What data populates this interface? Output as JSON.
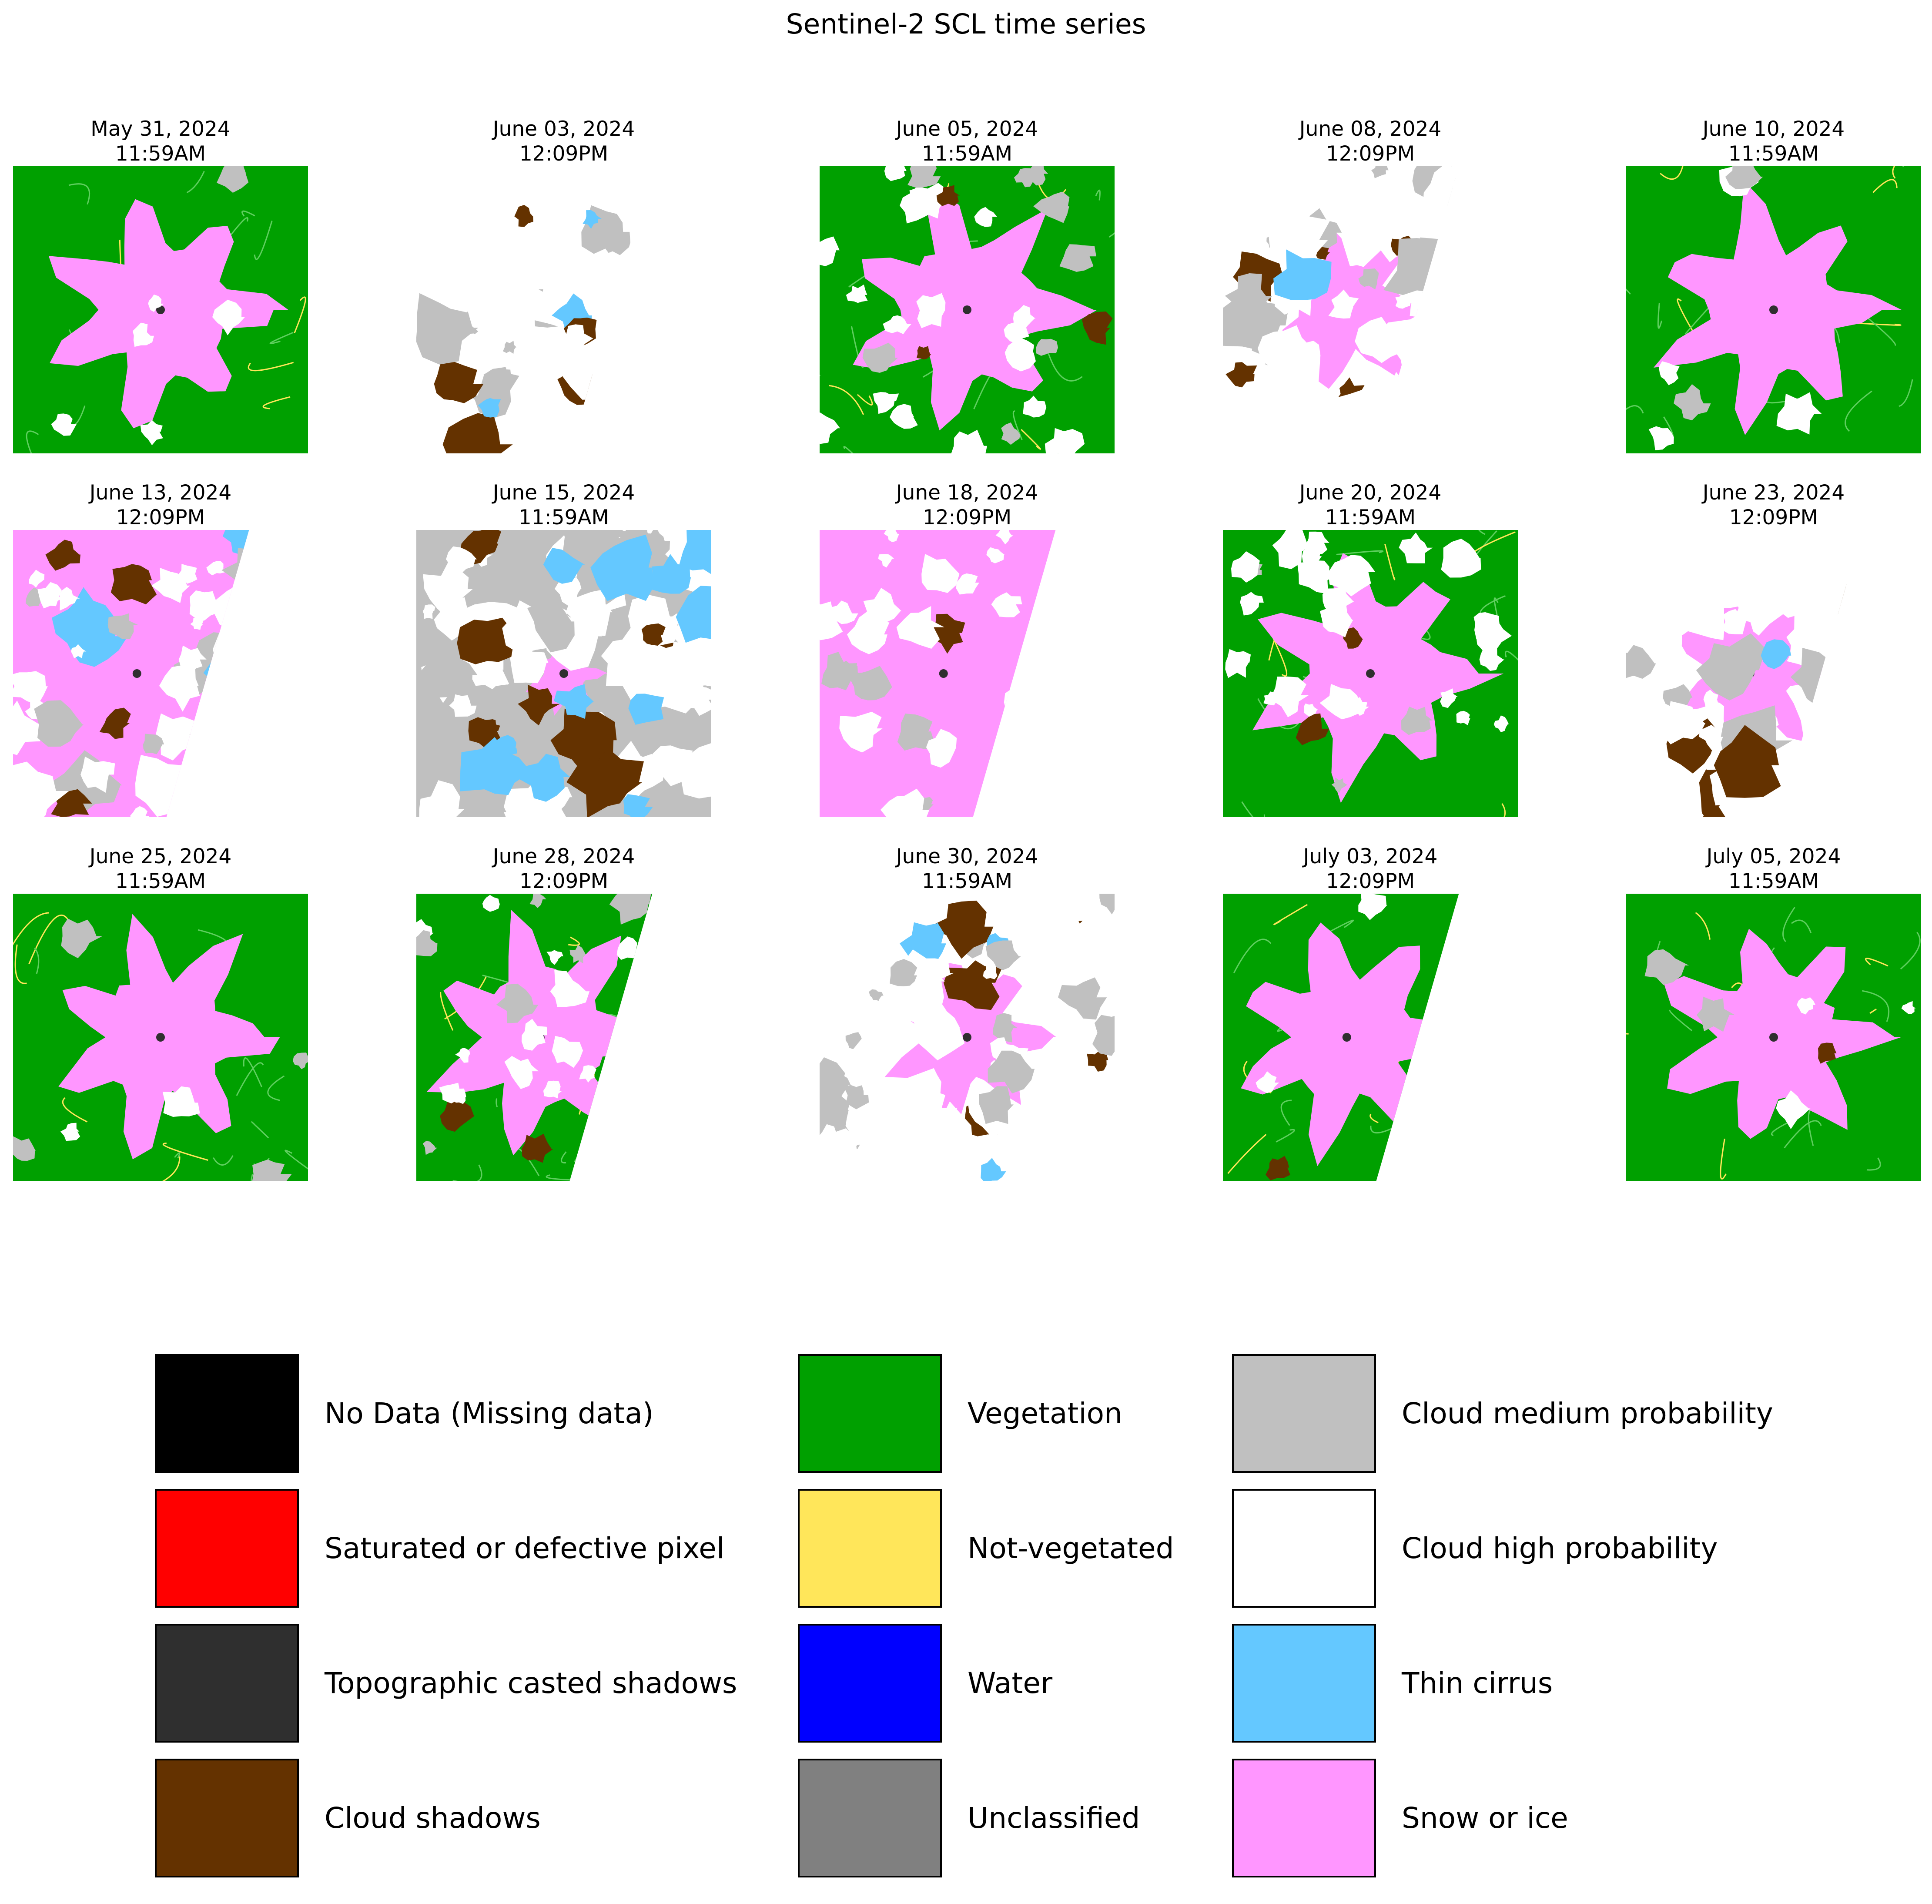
{
  "figure": {
    "title": "Sentinel-2 SCL time series"
  },
  "colors": {
    "vegetation": "#00a000",
    "snow": "#ff96ff",
    "cloud_high": "#ffffff",
    "cloud_medium": "#c0c0c0",
    "cirrus": "#64c8ff",
    "cloud_shadow": "#643200",
    "not_vegetated": "#ffe65a",
    "water": "#0000ff",
    "topo_shadow": "#2f2f2f"
  },
  "panels": [
    {
      "date": "May 31, 2024",
      "time": "11:59AM",
      "swath": "full",
      "dominant": "vegetation",
      "snow": "large",
      "cloud_cover": "low"
    },
    {
      "date": "June 03, 2024",
      "time": "12:09PM",
      "swath": "partial",
      "dominant": "cloud_high",
      "snow": "none",
      "cloud_cover": "high"
    },
    {
      "date": "June 05, 2024",
      "time": "11:59AM",
      "swath": "full",
      "dominant": "vegetation",
      "snow": "large",
      "cloud_cover": "medium"
    },
    {
      "date": "June 08, 2024",
      "time": "12:09PM",
      "swath": "partial",
      "dominant": "cloud_high",
      "snow": "medium",
      "cloud_cover": "high"
    },
    {
      "date": "June 10, 2024",
      "time": "11:59AM",
      "swath": "full",
      "dominant": "vegetation",
      "snow": "large",
      "cloud_cover": "low"
    },
    {
      "date": "June 13, 2024",
      "time": "12:09PM",
      "swath": "partial",
      "dominant": "snow",
      "snow": "large",
      "cloud_cover": "high"
    },
    {
      "date": "June 15, 2024",
      "time": "11:59AM",
      "swath": "full",
      "dominant": "cloud_medium",
      "snow": "small",
      "cloud_cover": "high"
    },
    {
      "date": "June 18, 2024",
      "time": "12:09PM",
      "swath": "partial",
      "dominant": "snow",
      "snow": "large",
      "cloud_cover": "medium"
    },
    {
      "date": "June 20, 2024",
      "time": "11:59AM",
      "swath": "full",
      "dominant": "vegetation",
      "snow": "large",
      "cloud_cover": "medium"
    },
    {
      "date": "June 23, 2024",
      "time": "12:09PM",
      "swath": "partial",
      "dominant": "cloud_high",
      "snow": "medium",
      "cloud_cover": "high"
    },
    {
      "date": "June 25, 2024",
      "time": "11:59AM",
      "swath": "full",
      "dominant": "vegetation",
      "snow": "large",
      "cloud_cover": "low"
    },
    {
      "date": "June 28, 2024",
      "time": "12:09PM",
      "swath": "partial",
      "dominant": "vegetation",
      "snow": "large",
      "cloud_cover": "medium"
    },
    {
      "date": "June 30, 2024",
      "time": "11:59AM",
      "swath": "full",
      "dominant": "cloud_high",
      "snow": "medium",
      "cloud_cover": "high"
    },
    {
      "date": "July 03, 2024",
      "time": "12:09PM",
      "swath": "partial",
      "dominant": "vegetation",
      "snow": "large",
      "cloud_cover": "low"
    },
    {
      "date": "July 05, 2024",
      "time": "11:59AM",
      "swath": "full",
      "dominant": "vegetation",
      "snow": "large",
      "cloud_cover": "low"
    }
  ],
  "legend": [
    {
      "label": "No Data (Missing data)",
      "color": "#000000"
    },
    {
      "label": "Saturated or defective pixel",
      "color": "#ff0000"
    },
    {
      "label": "Topographic casted shadows",
      "color": "#2f2f2f"
    },
    {
      "label": "Cloud shadows",
      "color": "#643200"
    },
    {
      "label": "Vegetation",
      "color": "#00a000"
    },
    {
      "label": "Not-vegetated",
      "color": "#ffe65a"
    },
    {
      "label": "Water",
      "color": "#0000ff"
    },
    {
      "label": "Unclassified",
      "color": "#808080"
    },
    {
      "label": "Cloud medium probability",
      "color": "#c0c0c0"
    },
    {
      "label": "Cloud high probability",
      "color": "#ffffff"
    },
    {
      "label": "Thin cirrus",
      "color": "#64c8ff"
    },
    {
      "label": "Snow or ice",
      "color": "#ff96ff"
    }
  ]
}
